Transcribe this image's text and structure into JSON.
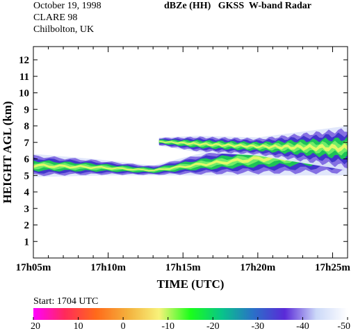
{
  "header": {
    "date": "October 19, 1998",
    "campaign": "CLARE 98",
    "location": "Chilbolton, UK",
    "title": "dBZe (HH)   GKSS  W-band Radar"
  },
  "start_label": "Start: 1704 UTC",
  "chart_data": {
    "type": "heatmap",
    "title": "dBZe (HH)   GKSS  W-band Radar",
    "xlabel": "TIME (UTC)",
    "ylabel": "HEIGHT AGL (km)",
    "x_unit": "minutes after 17:00 UTC",
    "xlim": [
      5,
      26
    ],
    "ylim": [
      0,
      12.8
    ],
    "x_ticks": [
      5,
      10,
      15,
      20,
      25
    ],
    "x_tick_labels": [
      "17h05m",
      "17h10m",
      "17h15m",
      "17h20m",
      "17h25m"
    ],
    "y_ticks": [
      1,
      2,
      3,
      4,
      5,
      6,
      7,
      8,
      9,
      10,
      11,
      12
    ],
    "colorbar": {
      "unit": "dBZe",
      "ticks": [
        20,
        10,
        0,
        -10,
        -20,
        -30,
        -40,
        -50
      ],
      "colors": [
        "#ff00ff",
        "#ff2a5a",
        "#ff6a1a",
        "#f4b03c",
        "#f7f27a",
        "#1aff1a",
        "#08c48a",
        "#2a70c8",
        "#5a2ad8",
        "#cbd8f8",
        "#ffffff"
      ]
    },
    "cloud_layers": [
      {
        "name": "lower-layer",
        "x_start": 5,
        "x_end": 26,
        "base_km": [
          [
            5,
            4.9
          ],
          [
            10,
            5.0
          ],
          [
            13,
            5.0
          ],
          [
            16,
            5.0
          ],
          [
            20,
            5.0
          ],
          [
            26,
            5.0
          ]
        ],
        "top_km": [
          [
            5,
            6.3
          ],
          [
            9,
            6.0
          ],
          [
            13,
            5.6
          ],
          [
            16,
            6.3
          ],
          [
            20,
            7.0
          ],
          [
            26,
            7.6
          ]
        ]
      },
      {
        "name": "upper-layer",
        "x_start": 13.4,
        "x_end": 26,
        "base_km": [
          [
            13.4,
            6.8
          ],
          [
            16,
            6.4
          ],
          [
            20,
            6.2
          ],
          [
            26,
            5.3
          ]
        ],
        "top_km": [
          [
            13.4,
            7.3
          ],
          [
            16,
            7.4
          ],
          [
            20,
            7.3
          ],
          [
            26,
            8.0
          ]
        ]
      }
    ]
  }
}
